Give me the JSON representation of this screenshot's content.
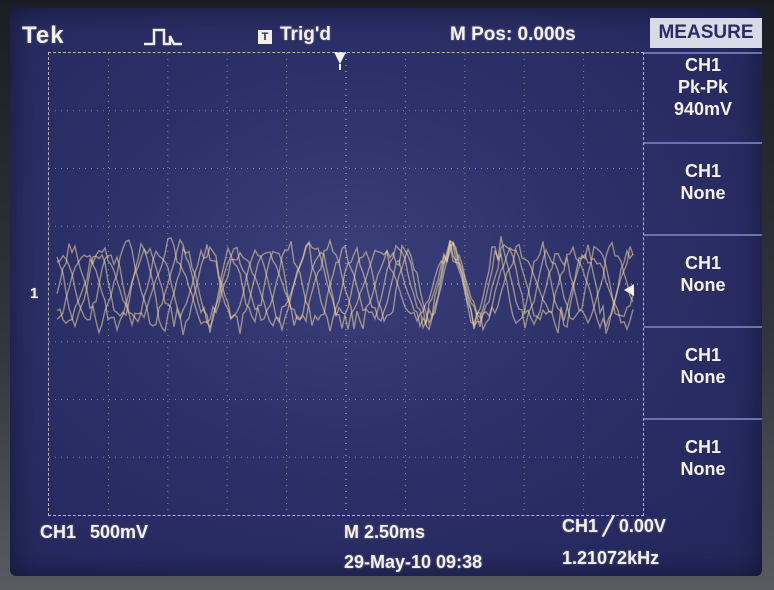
{
  "header": {
    "brand": "Tek",
    "trigger_status_badge": "T",
    "trigger_status": "Trig'd",
    "horizontal_position": "M Pos: 0.000s"
  },
  "menu": {
    "title": "MEASURE",
    "items": [
      {
        "lines": [
          "CH1",
          "Pk-Pk",
          "940mV"
        ]
      },
      {
        "lines": [
          "CH1",
          "None"
        ]
      },
      {
        "lines": [
          "CH1",
          "None"
        ]
      },
      {
        "lines": [
          "CH1",
          "None"
        ]
      },
      {
        "lines": [
          "CH1",
          "None"
        ]
      }
    ]
  },
  "channel_marker": "1",
  "footer": {
    "channel": "CH1",
    "volts_per_div": "500mV",
    "timebase": "M 2.50ms",
    "date_time": "29-May-10 09:38",
    "trigger": "CH1 ╱ 0.00V",
    "frequency": "1.21072kHz"
  },
  "colors": {
    "screen": "#2c3068",
    "trace": "#f2d9a8",
    "text": "#f4f1e8",
    "menu_title_bg": "#d8dbe6"
  },
  "icons": [
    "trigger-edge-icon",
    "trigger-position-arrow-icon",
    "trigger-level-arrow-icon"
  ]
}
